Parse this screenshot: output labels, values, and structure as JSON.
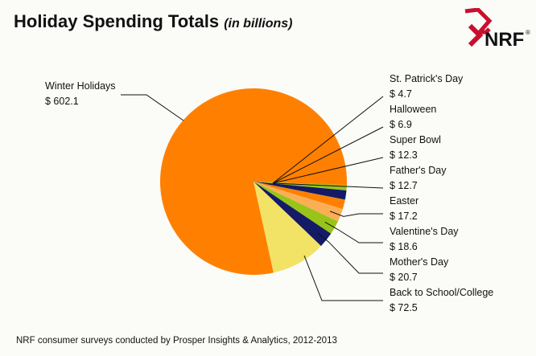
{
  "header": {
    "title": "Holiday Spending Totals",
    "subtitle": "(in billions)"
  },
  "logo": {
    "text": "NRF",
    "mark": "®"
  },
  "footer": {
    "source": "NRF consumer surveys conducted by Prosper Insights & Analytics, 2012-2013"
  },
  "colors": {
    "orange": "#ff8000",
    "navy": "#141a66",
    "green": "#98c41a",
    "yellow": "#f2e366",
    "lightOrange": "#fcae55",
    "logoRed": "#c8102e"
  },
  "chart_data": {
    "type": "pie",
    "title": "Holiday Spending Totals",
    "subtitle": "(in billions)",
    "unit": "$ billions",
    "start_angle_deg": 0,
    "direction": "clockwise",
    "slices": [
      {
        "label": "St. Patrick's Day",
        "display": "$ 4.7",
        "value": 4.7,
        "color": "#ff8000"
      },
      {
        "label": "Halloween",
        "display": "$ 6.9",
        "value": 6.9,
        "color": "#98c41a"
      },
      {
        "label": "Super Bowl",
        "display": "$ 12.3",
        "value": 12.3,
        "color": "#141a66"
      },
      {
        "label": "Father's Day",
        "display": "$ 12.7",
        "value": 12.7,
        "color": "#ff8000"
      },
      {
        "label": "Easter",
        "display": "$ 17.2",
        "value": 17.2,
        "color": "#fcae55"
      },
      {
        "label": "Valentine's Day",
        "display": "$ 18.6",
        "value": 18.6,
        "color": "#98c41a"
      },
      {
        "label": "Mother's Day",
        "display": "$ 20.7",
        "value": 20.7,
        "color": "#141a66"
      },
      {
        "label": "Back to School/College",
        "display": "$ 72.5",
        "value": 72.5,
        "color": "#f2e366"
      },
      {
        "label": "Winter Holidays",
        "display": "$ 602.1",
        "value": 602.1,
        "color": "#ff8000"
      }
    ]
  }
}
